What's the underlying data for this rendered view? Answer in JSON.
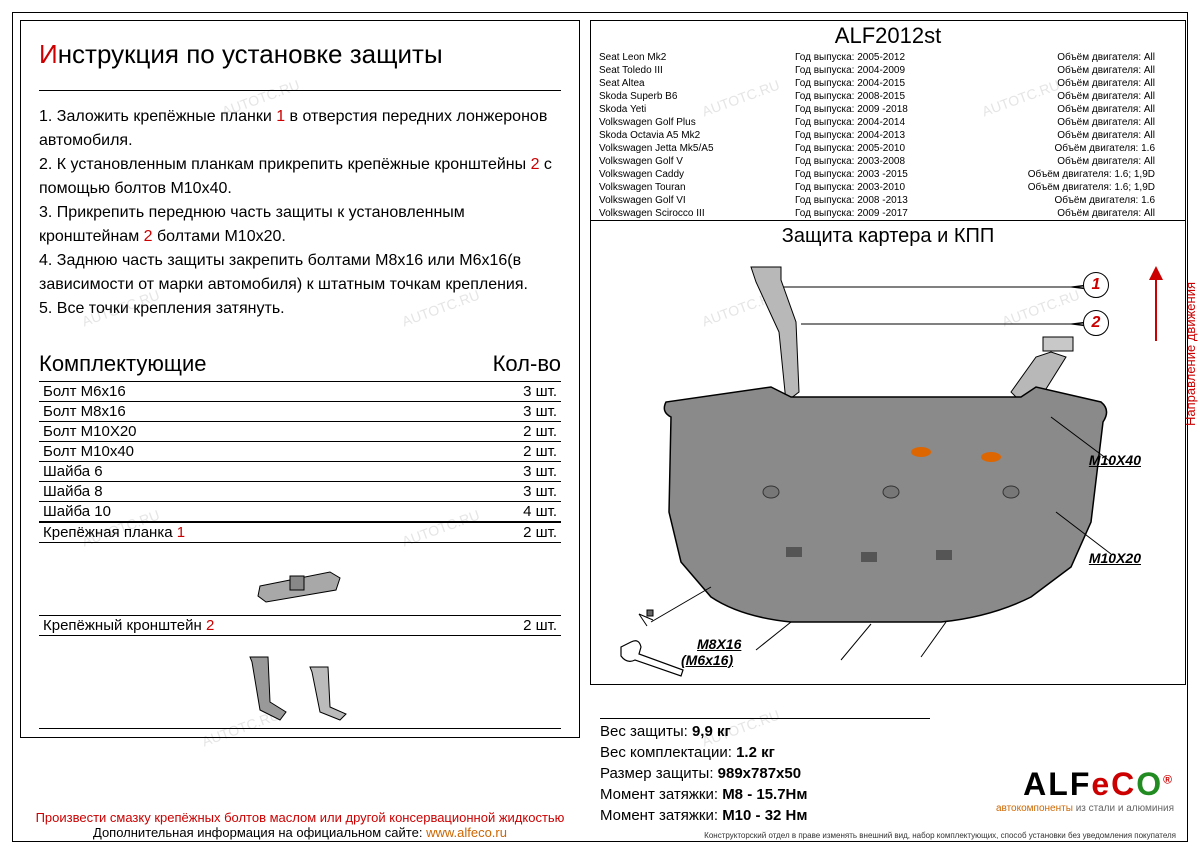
{
  "main_title": "Инструкция по установке защиты",
  "instructions": [
    {
      "n": "1.",
      "text": "Заложить крепёжные планки ",
      "ref": "1",
      "tail": " в отверстия передних лонжеронов автомобиля."
    },
    {
      "n": "2.",
      "text": "К установленным планкам прикрепить крепёжные кронштейны ",
      "ref": "2",
      "tail": " с помощью болтов М10х40."
    },
    {
      "n": "3.",
      "text": "Прикрепить переднюю часть защиты к установленным кронштейнам ",
      "ref": "2",
      "tail": " болтами М10х20."
    },
    {
      "n": "4.",
      "text": "Заднюю часть защиты закрепить болтами М8х16 или М6х16(в зависимости от марки автомобиля) к штатным точкам крепления.",
      "ref": "",
      "tail": ""
    },
    {
      "n": "5.",
      "text": "Все точки крепления затянуть.",
      "ref": "",
      "tail": ""
    }
  ],
  "components_header": {
    "left": "Комплектующие",
    "right": "Кол-во"
  },
  "components": [
    {
      "name": "Болт М6х16",
      "qty": "3 шт."
    },
    {
      "name": "Болт М8х16",
      "qty": "3 шт."
    },
    {
      "name": "Болт М10Х20",
      "qty": "2 шт."
    },
    {
      "name": "Болт М10х40",
      "qty": "2 шт."
    },
    {
      "name": "Шайба 6",
      "qty": "3 шт."
    },
    {
      "name": "Шайба 8",
      "qty": "3 шт."
    },
    {
      "name": "Шайба 10",
      "qty": "4 шт."
    }
  ],
  "special_components": [
    {
      "name": "Крепёжная планка ",
      "ref": "1",
      "qty": "2 шт."
    },
    {
      "name": "Крепёжный кронштейн  ",
      "ref": "2",
      "qty": "2 шт."
    }
  ],
  "footer": {
    "line1": "Произвести смазку крепёжных болтов маслом или другой консервационной жидкостью",
    "line2": "Дополнительная информация на официальном сайте: ",
    "link": "www.alfeco.ru"
  },
  "product_code": "ALF2012st",
  "vehicles": [
    {
      "model": "Seat Leon Mk2",
      "year": "Год выпуска: 2005-2012",
      "engine": "Объём двигателя: All"
    },
    {
      "model": "Seat Toledo III",
      "year": "Год выпуска: 2004-2009",
      "engine": "Объём двигателя: All"
    },
    {
      "model": "Seat Altea",
      "year": "Год выпуска: 2004-2015",
      "engine": "Объём двигателя: All"
    },
    {
      "model": "Skoda Superb B6",
      "year": "Год выпуска: 2008-2015",
      "engine": "Объём двигателя: All"
    },
    {
      "model": "Skoda Yeti",
      "year": "Год выпуска: 2009 -2018",
      "engine": "Объём двигателя: All"
    },
    {
      "model": "Volkswagen Golf Plus",
      "year": "Год выпуска: 2004-2014",
      "engine": "Объём двигателя: All"
    },
    {
      "model": "Skoda Octavia A5 Mk2",
      "year": "Год выпуска: 2004-2013",
      "engine": "Объём двигателя: All"
    },
    {
      "model": "Volkswagen Jetta Mk5/A5",
      "year": "Год выпуска: 2005-2010",
      "engine": "Объём двигателя: 1.6"
    },
    {
      "model": "Volkswagen Golf V",
      "year": "Год выпуска: 2003-2008",
      "engine": "Объём двигателя: All"
    },
    {
      "model": "Volkswagen Caddy",
      "year": "Год выпуска: 2003 -2015",
      "engine": "Объём двигателя: 1.6; 1,9D"
    },
    {
      "model": "Volkswagen Touran",
      "year": "Год выпуска: 2003-2010",
      "engine": "Объём двигателя: 1.6; 1,9D"
    },
    {
      "model": "Volkswagen Golf VI",
      "year": "Год выпуска: 2008 -2013",
      "engine": "Объём двигателя: 1.6"
    },
    {
      "model": "Volkswagen Scirocco III",
      "year": "Год выпуска: 2009 -2017",
      "engine": "Объём двигателя: All"
    }
  ],
  "diagram_title": "Защита картера и КПП",
  "direction": "Направление движения",
  "callouts": {
    "c1": "1",
    "c2": "2"
  },
  "bolt_labels": {
    "b1": "M10X40",
    "b2": "M10X20",
    "b3": "M8X16",
    "b4": "(M6x16)"
  },
  "specs": [
    {
      "label": "Вес защиты: ",
      "value": "9,9 кг"
    },
    {
      "label": "Вес комплектации: ",
      "value": "1.2 кг"
    },
    {
      "label": "Размер защиты: ",
      "value": "989x787x50"
    },
    {
      "label": "Момент затяжки:  ",
      "value": "М8 - 15.7Нм"
    },
    {
      "label": "Момент затяжки:  ",
      "value": "М10 - 32 Нм"
    }
  ],
  "logo": {
    "name": "ALF",
    "eco": "eC",
    "o": "O",
    "reg": "®",
    "sub1": "автокомпоненты ",
    "sub2": "из стали и алюминия"
  },
  "fine_print": "Конструкторский отдел в праве изменять внешний вид, набор комплектующих, способ установки без уведомления покупателя",
  "watermark": "AUTOTC.RU"
}
